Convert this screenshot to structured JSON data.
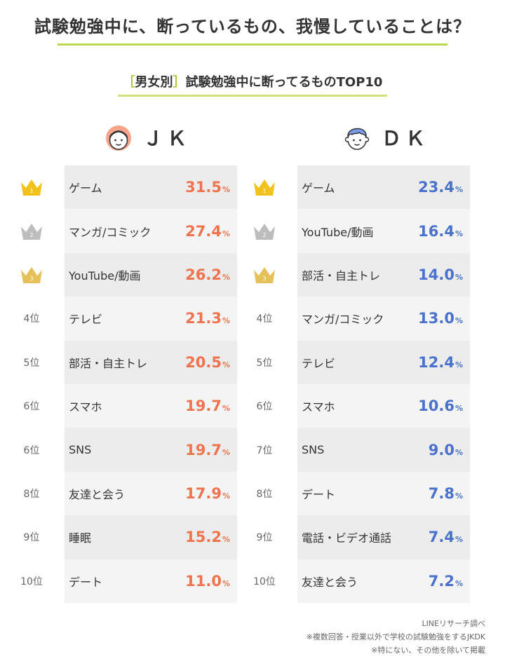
{
  "title": "試験勉強中に、断っているもの、我慢していることは？",
  "subtitle": {
    "bracket_open": "［",
    "bracket_text": "男女別",
    "bracket_close": "］",
    "text": "試験勉強中に断ってるものTOP10"
  },
  "colors": {
    "accent_green": "#b9d84e",
    "jk_value": "#f0734f",
    "dk_value": "#4a72cc",
    "row_bg_light": "#f4f4f4",
    "row_bg_dark": "#ececec",
    "gold": "#f2c21a",
    "silver": "#bdbdbd",
    "bronze": "#e6c15a"
  },
  "chart_data": [
    {
      "type": "table",
      "title": "ＪＫ",
      "ranks": [
        "1",
        "2",
        "3",
        "4位",
        "5位",
        "6位",
        "6位",
        "8位",
        "9位",
        "10位"
      ],
      "categories": [
        "ゲーム",
        "マンガ/コミック",
        "YouTube/動画",
        "テレビ",
        "部活・自主トレ",
        "スマホ",
        "SNS",
        "友達と会う",
        "睡眠",
        "デート"
      ],
      "values": [
        "31.5",
        "27.4",
        "26.2",
        "21.3",
        "20.5",
        "19.7",
        "19.7",
        "17.9",
        "15.2",
        "11.0"
      ],
      "unit": "%"
    },
    {
      "type": "table",
      "title": "ＤＫ",
      "ranks": [
        "1",
        "2",
        "3",
        "4位",
        "5位",
        "6位",
        "7位",
        "8位",
        "9位",
        "10位"
      ],
      "categories": [
        "ゲーム",
        "YouTube/動画",
        "部活・自主トレ",
        "マンガ/コミック",
        "テレビ",
        "スマホ",
        "SNS",
        "デート",
        "電話・ビデオ通話",
        "友達と会う"
      ],
      "values": [
        "23.4",
        "16.4",
        "14.0",
        "13.0",
        "12.4",
        "10.6",
        "9.0",
        "7.8",
        "7.4",
        "7.2"
      ],
      "unit": "%"
    }
  ],
  "footnotes": [
    "LINEリサーチ調べ",
    "※複数回答・授業以外で学校の試験勉強をするJKDK",
    "※特にない、その他を除いて掲載"
  ]
}
